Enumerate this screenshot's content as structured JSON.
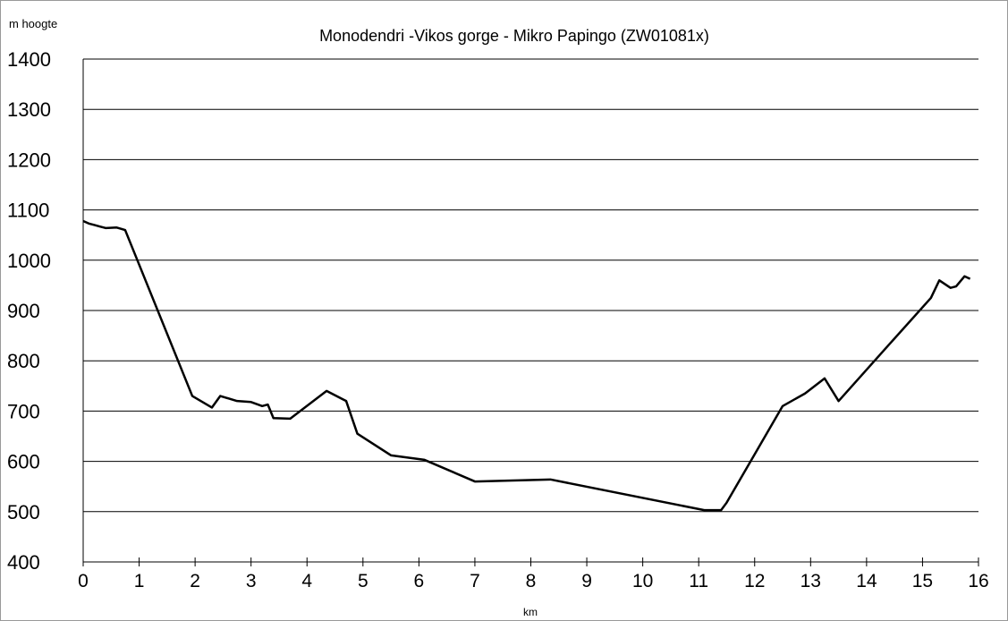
{
  "chart_data": {
    "type": "line",
    "title": "Monodendri -Vikos gorge - Mikro Papingo (ZW01081x)",
    "y_label": "m hoogte",
    "x_label": "km",
    "color": "#000000",
    "grid": true,
    "xlim": [
      0,
      16
    ],
    "xticks": [
      0,
      1,
      2,
      3,
      4,
      5,
      6,
      7,
      8,
      9,
      10,
      11,
      12,
      13,
      14,
      15,
      16
    ],
    "ylim": [
      400,
      1400
    ],
    "yticks": [
      400,
      500,
      600,
      700,
      800,
      900,
      1000,
      1100,
      1200,
      1300,
      1400
    ],
    "x": [
      0,
      0.1,
      0.2,
      0.3,
      0.4,
      0.6,
      0.75,
      1.95,
      2.3,
      2.45,
      2.75,
      3.0,
      3.2,
      3.3,
      3.4,
      3.7,
      4.35,
      4.7,
      4.9,
      5.5,
      6.1,
      7.0,
      8.35,
      11.1,
      11.4,
      11.5,
      12.5,
      12.9,
      13.25,
      13.5,
      14.4,
      15.15,
      15.3,
      15.5,
      15.6,
      15.75,
      15.85
    ],
    "values": [
      1078,
      1073,
      1070,
      1067,
      1064,
      1065,
      1060,
      730,
      707,
      730,
      720,
      718,
      710,
      713,
      686,
      685,
      740,
      720,
      655,
      612,
      603,
      560,
      564,
      503,
      503,
      518,
      710,
      735,
      765,
      720,
      832,
      925,
      960,
      945,
      948,
      968,
      963
    ]
  }
}
